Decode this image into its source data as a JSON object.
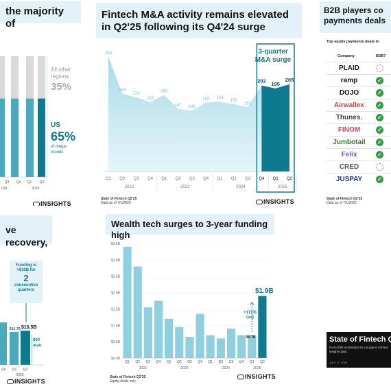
{
  "colors": {
    "dark_teal": "#0e7a8f",
    "light_teal": "#8fd0e0",
    "band_blue": "#e3f2f8",
    "gray_bar": "#d9d9d9",
    "check_green": "#2ea043"
  },
  "brand": {
    "logo": "CBINSIGHTS",
    "logo_mark": "CB",
    "logo_rest": "INSIGHTS"
  },
  "panel_top_left": {
    "title": "the majority of",
    "other_label_lines": [
      "All other",
      "regions"
    ],
    "other_pct": "35%",
    "us_label": "US",
    "us_pct": "65%",
    "us_note_lines": [
      "of mega-",
      "rounds"
    ],
    "x_ticks": [
      "Q3",
      "Q4",
      "Q1",
      "Q2"
    ],
    "year_labels": [
      "024",
      "2025"
    ]
  },
  "panel_ma": {
    "title": "Fintech M&A activity remains elevated in Q2'25 following its Q4'24 surge",
    "callout": "3-quarter M&A surge",
    "footer_lines": [
      "State of Fintech Q2'25",
      "Data as of 7/1/2025"
    ]
  },
  "panel_b2b": {
    "title_lines": [
      "B2B players co",
      "payments deals"
    ],
    "subtitle": "Top equity payments deals in",
    "col_company": "Company",
    "col_b2b": "B2B?",
    "companies": [
      {
        "name": "PLAID",
        "b2b": false
      },
      {
        "name": "ramp",
        "b2b": true
      },
      {
        "name": "DOJO",
        "b2b": true
      },
      {
        "name": "Airwallex",
        "b2b": true
      },
      {
        "name": "Thunes.",
        "b2b": true
      },
      {
        "name": "FINOM",
        "b2b": true
      },
      {
        "name": "Jumbotail",
        "b2b": true
      },
      {
        "name": "Felix",
        "b2b": true
      },
      {
        "name": "CRED",
        "b2b": false
      },
      {
        "name": "JUSPAY",
        "b2b": true
      }
    ],
    "footer_lines": [
      "State of Fintech Q2'25",
      "Data as of 7/1/2025"
    ]
  },
  "panel_recovery": {
    "title": "ve recovery,",
    "callout_lines": [
      "Funding is",
      ">$10B for"
    ],
    "callout_num": "2",
    "callout_tail_lines": [
      "consecutive",
      "quarters"
    ],
    "label_a": "$10.7B",
    "label_b": "$10.5B",
    "deals_num": "804",
    "deals_word": "deals",
    "x_ticks": [
      "Q4",
      "Q1",
      "Q2"
    ],
    "year_label": "2025"
  },
  "panel_report": {
    "title": "State of Fintech Q",
    "blurb_lines": [
      "From B2B momentum to a surge in US-led",
      "insights data."
    ],
    "date": "JULY 17, 2025"
  },
  "panel_wealth": {
    "title": "Wealth tech surges to 3-year funding high",
    "growth_label_lines": [
      "+171%",
      "QoQ"
    ],
    "last_label": "$1.9B",
    "prev_label": "$0.7B",
    "footer_lines": [
      "State of Fintech Q2'25",
      "Equity deals only"
    ]
  },
  "chart_data": [
    {
      "type": "area",
      "title": "Fintech M&A activity remains elevated in Q2'25 following its Q4'24 surge",
      "categories": [
        "Q1",
        "Q2",
        "Q3",
        "Q4",
        "Q1",
        "Q2",
        "Q3",
        "Q4",
        "Q1",
        "Q2",
        "Q3",
        "Q4",
        "Q1",
        "Q2"
      ],
      "year_groups": [
        {
          "label": "2022",
          "start": 0,
          "end": 3
        },
        {
          "label": "2023",
          "start": 4,
          "end": 7
        },
        {
          "label": "2024",
          "start": 8,
          "end": 11
        },
        {
          "label": "2025",
          "start": 12,
          "end": 13
        }
      ],
      "values": [
        269,
        183,
        174,
        163,
        180,
        147,
        143,
        162,
        164,
        158,
        151,
        202,
        195,
        205
      ],
      "highlight_range": [
        11,
        13
      ],
      "ylim": [
        0,
        290
      ]
    },
    {
      "type": "bar",
      "title": "Wealth tech surges to 3-year funding high",
      "categories": [
        "Q1",
        "Q2",
        "Q3",
        "Q4",
        "Q1",
        "Q2",
        "Q3",
        "Q4",
        "Q1",
        "Q2",
        "Q3",
        "Q4",
        "Q1",
        "Q2"
      ],
      "year_groups": [
        {
          "label": "2022",
          "start": 0,
          "end": 3
        },
        {
          "label": "2023",
          "start": 4,
          "end": 7
        },
        {
          "label": "2024",
          "start": 8,
          "end": 11
        },
        {
          "label": "2025",
          "start": 12,
          "end": 13
        }
      ],
      "values": [
        3.4,
        2.8,
        1.55,
        1.75,
        1.2,
        0.95,
        0.65,
        1.35,
        0.7,
        0.6,
        0.9,
        0.7,
        0.7,
        1.9
      ],
      "y_ticks": [
        "$0.0B",
        "$0.5B",
        "$1.0B",
        "$1.5B",
        "$2.0B",
        "$2.5B",
        "$3.0B",
        "$3.5B"
      ],
      "ylim": [
        0,
        3.5
      ]
    },
    {
      "type": "bar",
      "title": "the majority of",
      "categories": [
        "Q3",
        "Q4",
        "Q1",
        "Q2"
      ],
      "series": [
        {
          "name": "US",
          "values": [
            65,
            65,
            65,
            65
          ]
        },
        {
          "name": "All other regions",
          "values": [
            35,
            35,
            35,
            35
          ]
        }
      ],
      "ylim": [
        0,
        100
      ]
    }
  ]
}
